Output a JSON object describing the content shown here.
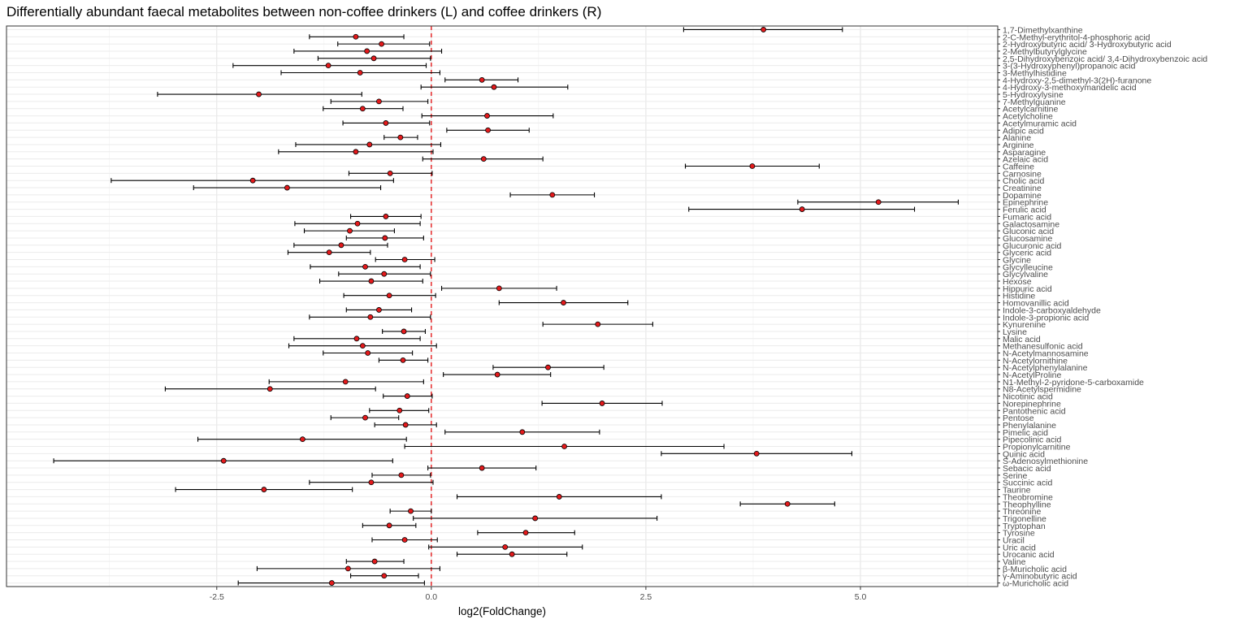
{
  "chart_data": {
    "type": "scatter",
    "title": "Differentially abundant faecal metabolites between non-coffee drinkers (L) and coffee drinkers (R)",
    "xlabel": "log2(FoldChange)",
    "ylabel": "",
    "xlim": [
      -4.95,
      6.6
    ],
    "xticks": [
      -2.5,
      0.0,
      2.5,
      5.0
    ],
    "xtick_labels": [
      "-2.5",
      "0.0",
      "2.5",
      "5.0"
    ],
    "reference_line": {
      "x": 0,
      "style": "dashed",
      "color": "#e41a1c"
    },
    "point_color": "#e41a1c",
    "grid": true,
    "points": [
      {
        "label": "1,7-Dimethylxanthine",
        "x": 3.87,
        "lo": 2.94,
        "hi": 4.79
      },
      {
        "label": "2-C-Methyl-erythritol-4-phosphoric acid",
        "x": -0.88,
        "lo": -1.42,
        "hi": -0.32
      },
      {
        "label": "2-Hydroxybutyric acid/ 3-Hydroxybutyric acid",
        "x": -0.58,
        "lo": -1.09,
        "hi": -0.02
      },
      {
        "label": "2-Methylbutyrylglycine",
        "x": -0.75,
        "lo": -1.6,
        "hi": 0.12
      },
      {
        "label": "2,5-Dihydroxybenzoic acid/ 3,4-Dihydroxybenzoic acid",
        "x": -0.67,
        "lo": -1.32,
        "hi": -0.01
      },
      {
        "label": "3-(3-Hydroxyphenyl)propanoic acid",
        "x": -1.2,
        "lo": -2.31,
        "hi": -0.06
      },
      {
        "label": "3-Methylhistidine",
        "x": -0.83,
        "lo": -1.75,
        "hi": 0.1
      },
      {
        "label": "4-Hydroxy-2,5-dimethyl-3(2H)-furanone",
        "x": 0.59,
        "lo": 0.16,
        "hi": 1.01
      },
      {
        "label": "4-Hydroxy-3-methoxymandelic acid",
        "x": 0.73,
        "lo": -0.12,
        "hi": 1.59
      },
      {
        "label": "5-Hydroxylysine",
        "x": -2.01,
        "lo": -3.19,
        "hi": -0.81
      },
      {
        "label": "7-Methylguanine",
        "x": -0.61,
        "lo": -1.17,
        "hi": -0.04
      },
      {
        "label": "Acetylcarnitine",
        "x": -0.8,
        "lo": -1.26,
        "hi": -0.33
      },
      {
        "label": "Acetylcholine",
        "x": 0.65,
        "lo": -0.11,
        "hi": 1.42
      },
      {
        "label": "Acetylmuramic acid",
        "x": -0.53,
        "lo": -1.03,
        "hi": -0.02
      },
      {
        "label": "Adipic acid",
        "x": 0.66,
        "lo": 0.18,
        "hi": 1.14
      },
      {
        "label": "Alanine",
        "x": -0.36,
        "lo": -0.55,
        "hi": -0.16
      },
      {
        "label": "Arginine",
        "x": -0.72,
        "lo": -1.58,
        "hi": 0.11
      },
      {
        "label": "Asparagine",
        "x": -0.88,
        "lo": -1.78,
        "hi": 0.02
      },
      {
        "label": "Azelaic acid",
        "x": 0.61,
        "lo": -0.1,
        "hi": 1.3
      },
      {
        "label": "Caffeine",
        "x": 3.74,
        "lo": 2.96,
        "hi": 4.52
      },
      {
        "label": "Carnosine",
        "x": -0.48,
        "lo": -0.96,
        "hi": 0.01
      },
      {
        "label": "Cholic acid",
        "x": -2.08,
        "lo": -3.73,
        "hi": -0.44
      },
      {
        "label": "Creatinine",
        "x": -1.68,
        "lo": -2.77,
        "hi": -0.59
      },
      {
        "label": "Dopamine",
        "x": 1.41,
        "lo": 0.92,
        "hi": 1.9
      },
      {
        "label": "Epinephrine",
        "x": 5.21,
        "lo": 4.27,
        "hi": 6.14
      },
      {
        "label": "Ferulic acid",
        "x": 4.32,
        "lo": 3,
        "hi": 5.63
      },
      {
        "label": "Fumaric acid",
        "x": -0.53,
        "lo": -0.94,
        "hi": -0.12
      },
      {
        "label": "Galactosamine",
        "x": -0.86,
        "lo": -1.59,
        "hi": -0.13
      },
      {
        "label": "Gluconic acid",
        "x": -0.95,
        "lo": -1.48,
        "hi": -0.43
      },
      {
        "label": "Glucosamine",
        "x": -0.54,
        "lo": -0.99,
        "hi": -0.09
      },
      {
        "label": "Glucuronic acid",
        "x": -1.05,
        "lo": -1.6,
        "hi": -0.51
      },
      {
        "label": "Glyceric acid",
        "x": -1.19,
        "lo": -1.67,
        "hi": -0.71
      },
      {
        "label": "Glycine",
        "x": -0.31,
        "lo": -0.65,
        "hi": 0.04
      },
      {
        "label": "Glycylleucine",
        "x": -0.77,
        "lo": -1.41,
        "hi": -0.13
      },
      {
        "label": "Glycylvaline",
        "x": -0.55,
        "lo": -1.08,
        "hi": -0.01
      },
      {
        "label": "Hexose",
        "x": -0.7,
        "lo": -1.3,
        "hi": -0.1
      },
      {
        "label": "Hippuric acid",
        "x": 0.79,
        "lo": 0.12,
        "hi": 1.46
      },
      {
        "label": "Histidine",
        "x": -0.49,
        "lo": -1.02,
        "hi": 0.05
      },
      {
        "label": "Homovanillic acid",
        "x": 1.54,
        "lo": 0.79,
        "hi": 2.29
      },
      {
        "label": "Indole-3-carboxyaldehyde",
        "x": -0.61,
        "lo": -0.99,
        "hi": -0.23
      },
      {
        "label": "Indole-3-propionic acid",
        "x": -0.71,
        "lo": -1.42,
        "hi": -0.01
      },
      {
        "label": "Kynurenine",
        "x": 1.94,
        "lo": 1.3,
        "hi": 2.58
      },
      {
        "label": "Lysine",
        "x": -0.32,
        "lo": -0.57,
        "hi": -0.07
      },
      {
        "label": "Malic acid",
        "x": -0.87,
        "lo": -1.6,
        "hi": -0.13
      },
      {
        "label": "Methanesulfonic acid",
        "x": -0.8,
        "lo": -1.66,
        "hi": 0.06
      },
      {
        "label": "N-Acetylmannosamine",
        "x": -0.74,
        "lo": -1.26,
        "hi": -0.22
      },
      {
        "label": "N-Acetylornithine",
        "x": -0.33,
        "lo": -0.61,
        "hi": -0.04
      },
      {
        "label": "N-Acetylphenylalanine",
        "x": 1.36,
        "lo": 0.72,
        "hi": 2.01
      },
      {
        "label": "N-AcetylProline",
        "x": 0.77,
        "lo": 0.14,
        "hi": 1.39
      },
      {
        "label": "N1-Methyl-2-pyridone-5-carboxamide",
        "x": -1,
        "lo": -1.89,
        "hi": -0.09
      },
      {
        "label": "N8-Acetylspermidine",
        "x": -1.88,
        "lo": -3.1,
        "hi": -0.65
      },
      {
        "label": "Nicotinic acid",
        "x": -0.28,
        "lo": -0.56,
        "hi": 0.01
      },
      {
        "label": "Norepinephrine",
        "x": 1.99,
        "lo": 1.29,
        "hi": 2.69
      },
      {
        "label": "Pantothenic acid",
        "x": -0.37,
        "lo": -0.72,
        "hi": -0.03
      },
      {
        "label": "Pentose",
        "x": -0.77,
        "lo": -1.17,
        "hi": -0.38
      },
      {
        "label": "Phenylalanine",
        "x": -0.3,
        "lo": -0.66,
        "hi": 0.06
      },
      {
        "label": "Pimelic acid",
        "x": 1.06,
        "lo": 0.16,
        "hi": 1.96
      },
      {
        "label": "Pipecolinic acid",
        "x": -1.5,
        "lo": -2.72,
        "hi": -0.29
      },
      {
        "label": "Propionylcarnitine",
        "x": 1.55,
        "lo": -0.31,
        "hi": 3.41
      },
      {
        "label": "Quinic acid",
        "x": 3.79,
        "lo": 2.68,
        "hi": 4.9
      },
      {
        "label": "S-Adenosylmethionine",
        "x": -2.42,
        "lo": -4.4,
        "hi": -0.45
      },
      {
        "label": "Sebacic acid",
        "x": 0.59,
        "lo": -0.04,
        "hi": 1.22
      },
      {
        "label": "Serine",
        "x": -0.35,
        "lo": -0.69,
        "hi": -0.01
      },
      {
        "label": "Succinic acid",
        "x": -0.7,
        "lo": -1.42,
        "hi": 0.02
      },
      {
        "label": "Taurine",
        "x": -1.95,
        "lo": -2.98,
        "hi": -0.92
      },
      {
        "label": "Theobromine",
        "x": 1.49,
        "lo": 0.3,
        "hi": 2.68
      },
      {
        "label": "Theophylline",
        "x": 4.15,
        "lo": 3.6,
        "hi": 4.7
      },
      {
        "label": "Threonine",
        "x": -0.24,
        "lo": -0.48,
        "hi": 0
      },
      {
        "label": "Trigonelline",
        "x": 1.21,
        "lo": -0.21,
        "hi": 2.63
      },
      {
        "label": "Tryptophan",
        "x": -0.49,
        "lo": -0.8,
        "hi": -0.18
      },
      {
        "label": "Tyrosine",
        "x": 1.1,
        "lo": 0.54,
        "hi": 1.67
      },
      {
        "label": "Uracil",
        "x": -0.31,
        "lo": -0.69,
        "hi": 0.07
      },
      {
        "label": "Uric acid",
        "x": 0.86,
        "lo": -0.03,
        "hi": 1.76
      },
      {
        "label": "Urocanic acid",
        "x": 0.94,
        "lo": 0.3,
        "hi": 1.58
      },
      {
        "label": "Valine",
        "x": -0.66,
        "lo": -0.99,
        "hi": -0.32
      },
      {
        "label": "β-Muricholic acid",
        "x": -0.97,
        "lo": -2.03,
        "hi": 0.1
      },
      {
        "label": "γ-Aminobutyric acid",
        "x": -0.55,
        "lo": -0.94,
        "hi": -0.15
      },
      {
        "label": "ω-Muricholic acid",
        "x": -1.16,
        "lo": -2.25,
        "hi": -0.08
      }
    ]
  }
}
